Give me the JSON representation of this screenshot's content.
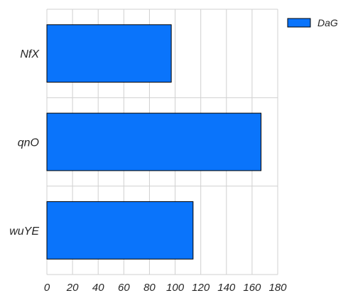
{
  "chart_data": {
    "type": "bar",
    "orientation": "horizontal",
    "categories": [
      "NfX",
      "qnO",
      "wuYE"
    ],
    "series": [
      {
        "name": "DaG",
        "values": [
          97,
          167,
          114
        ],
        "color": "#0a74fb"
      }
    ],
    "title": "",
    "xlabel": "",
    "ylabel": "",
    "xlim": [
      0,
      180
    ],
    "x_ticks": [
      "0",
      "20",
      "40",
      "60",
      "80",
      "100",
      "120",
      "140",
      "160",
      "180"
    ],
    "grid": true,
    "legend_position": "top-right",
    "bar_edge_color": "#000000",
    "grid_color": "#d0d0d0"
  }
}
